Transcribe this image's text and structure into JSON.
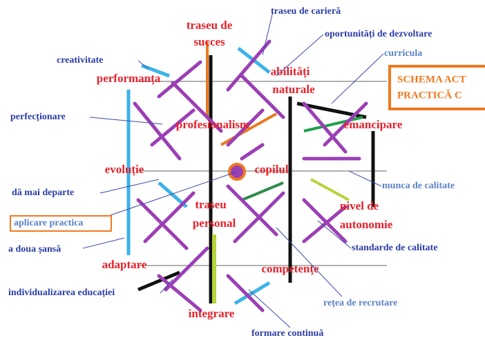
{
  "header": {
    "lines": [
      "SCHEMA ACT",
      "PRACTICĂ C"
    ]
  },
  "nodes": [
    {
      "lines": [
        "traseu de",
        "succes"
      ]
    },
    {
      "lines": [
        "performanța"
      ]
    },
    {
      "lines": [
        "abilități",
        "naturale"
      ]
    },
    {
      "lines": [
        "profesionalism"
      ]
    },
    {
      "lines": [
        "emancipare"
      ]
    },
    {
      "lines": [
        "evoluție"
      ]
    },
    {
      "lines": [
        "copilul"
      ]
    },
    {
      "lines": [
        "traseu",
        "personal"
      ]
    },
    {
      "lines": [
        "nivel de",
        "autonomie"
      ]
    },
    {
      "lines": [
        "adaptare"
      ]
    },
    {
      "lines": [
        "competențe"
      ]
    },
    {
      "lines": [
        "integrare"
      ]
    }
  ],
  "annotations": [
    {
      "label": "traseu de carieră"
    },
    {
      "label": "oportunități de dezvoltare"
    },
    {
      "label": "curricula"
    },
    {
      "label": "creativitate"
    },
    {
      "label": "perfecționare"
    },
    {
      "label": "dă mai departe"
    },
    {
      "label": "aplicare practica"
    },
    {
      "label": "a doua șansă"
    },
    {
      "label": "individualizarea educației"
    },
    {
      "label": "munca de calitate"
    },
    {
      "label": "standarde de calitate"
    },
    {
      "label": "rețea de recrutare"
    },
    {
      "label": "formare continuă"
    }
  ]
}
